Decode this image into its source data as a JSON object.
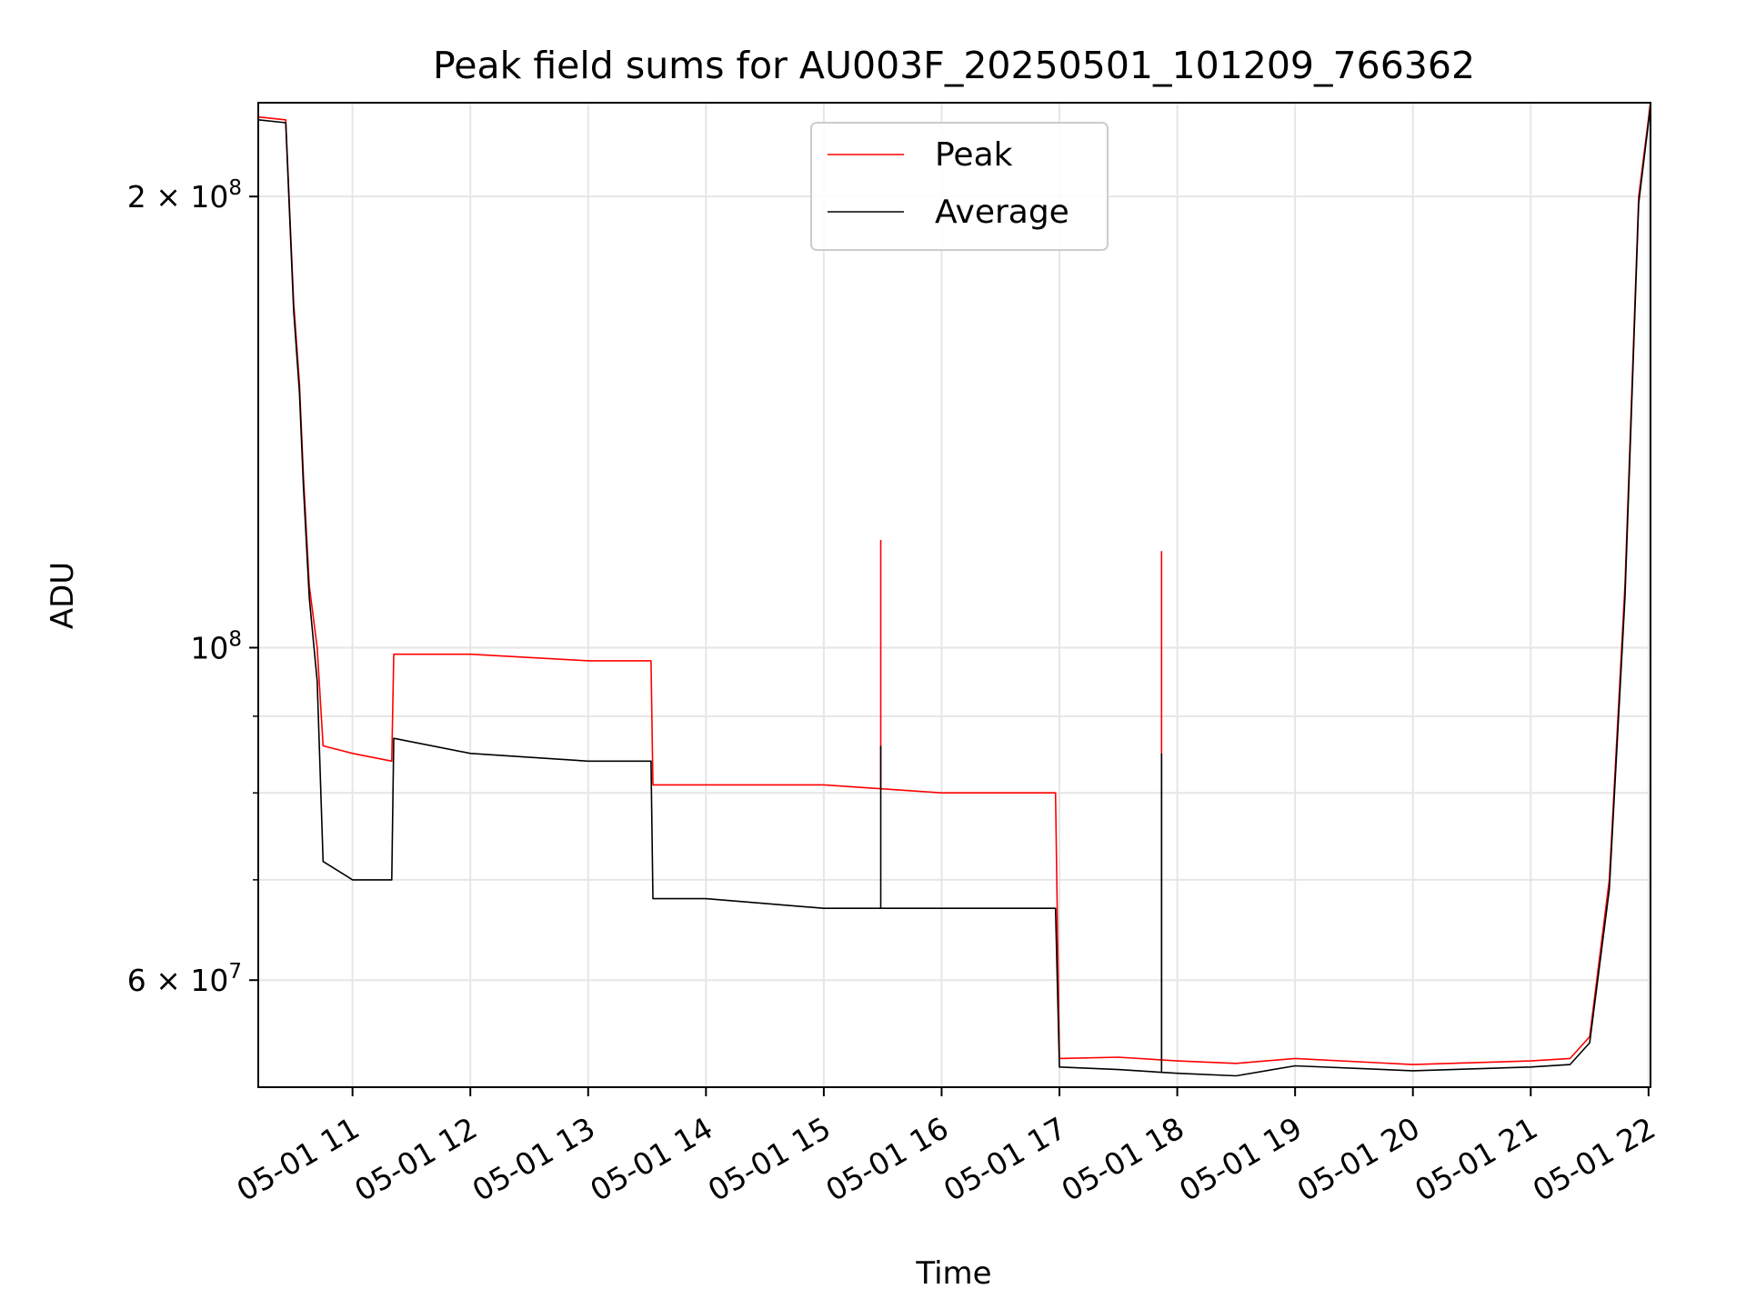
{
  "chart_data": {
    "type": "line",
    "title": "Peak field sums for AU003F_20250501_101209_766362",
    "xlabel": "Time",
    "ylabel": "ADU",
    "y_scale": "log",
    "grid": true,
    "legend_position": "top-center",
    "xlim": [
      "2025-05-01 10:12",
      "2025-05-01 22:01"
    ],
    "ylim": [
      50900000,
      231000000
    ],
    "x_ticks": [
      {
        "value": "2025-05-01 11:00",
        "label": "05-01 11"
      },
      {
        "value": "2025-05-01 12:00",
        "label": "05-01 12"
      },
      {
        "value": "2025-05-01 13:00",
        "label": "05-01 13"
      },
      {
        "value": "2025-05-01 14:00",
        "label": "05-01 14"
      },
      {
        "value": "2025-05-01 15:00",
        "label": "05-01 15"
      },
      {
        "value": "2025-05-01 16:00",
        "label": "05-01 16"
      },
      {
        "value": "2025-05-01 17:00",
        "label": "05-01 17"
      },
      {
        "value": "2025-05-01 18:00",
        "label": "05-01 18"
      },
      {
        "value": "2025-05-01 19:00",
        "label": "05-01 19"
      },
      {
        "value": "2025-05-01 20:00",
        "label": "05-01 20"
      },
      {
        "value": "2025-05-01 21:00",
        "label": "05-01 21"
      },
      {
        "value": "2025-05-01 22:00",
        "label": "05-01 22"
      }
    ],
    "y_ticks": [
      {
        "value": 200000000,
        "mantissa": "2",
        "times": "×",
        "base": "10",
        "exponent": "8"
      },
      {
        "value": 100000000,
        "mantissa": "",
        "times": "",
        "base": "10",
        "exponent": "8"
      },
      {
        "value": 60000000,
        "mantissa": "6",
        "times": "×",
        "base": "10",
        "exponent": "7"
      }
    ],
    "y_minor_ticks": [
      70000000,
      80000000,
      90000000
    ],
    "series": [
      {
        "name": "Peak",
        "color": "#ff0000",
        "x": [
          "2025-05-01 10:12",
          "2025-05-01 10:26",
          "2025-05-01 10:30",
          "2025-05-01 10:33",
          "2025-05-01 10:35",
          "2025-05-01 10:38",
          "2025-05-01 10:42",
          "2025-05-01 10:45",
          "2025-05-01 11:00",
          "2025-05-01 11:20",
          "2025-05-01 11:21",
          "2025-05-01 12:00",
          "2025-05-01 13:00",
          "2025-05-01 13:32",
          "2025-05-01 13:33",
          "2025-05-01 14:00",
          "2025-05-01 15:00",
          "2025-05-01 16:00",
          "2025-05-01 16:58",
          "2025-05-01 17:00",
          "2025-05-01 17:30",
          "2025-05-01 18:00",
          "2025-05-01 18:30",
          "2025-05-01 19:00",
          "2025-05-01 20:00",
          "2025-05-01 21:00",
          "2025-05-01 21:20",
          "2025-05-01 21:30",
          "2025-05-01 21:40",
          "2025-05-01 21:48",
          "2025-05-01 21:55",
          "2025-05-01 22:01"
        ],
        "y": [
          226000000,
          225000000,
          170000000,
          150000000,
          130000000,
          110000000,
          100000000,
          86000000,
          85000000,
          84000000,
          99000000,
          99000000,
          98000000,
          98000000,
          81000000,
          81000000,
          81000000,
          80000000,
          80000000,
          53200000,
          53300000,
          53000000,
          52800000,
          53200000,
          52700000,
          53000000,
          53200000,
          55000000,
          70000000,
          110000000,
          200000000,
          231000000
        ],
        "spikes": [
          {
            "x": "2025-05-01 15:29",
            "y": 118000000
          },
          {
            "x": "2025-05-01 17:52",
            "y": 116000000
          }
        ]
      },
      {
        "name": "Average",
        "color": "#000000",
        "x": [
          "2025-05-01 10:12",
          "2025-05-01 10:26",
          "2025-05-01 10:30",
          "2025-05-01 10:33",
          "2025-05-01 10:35",
          "2025-05-01 10:38",
          "2025-05-01 10:42",
          "2025-05-01 10:45",
          "2025-05-01 11:00",
          "2025-05-01 11:20",
          "2025-05-01 11:21",
          "2025-05-01 12:00",
          "2025-05-01 13:00",
          "2025-05-01 13:32",
          "2025-05-01 13:33",
          "2025-05-01 14:00",
          "2025-05-01 15:00",
          "2025-05-01 16:00",
          "2025-05-01 16:58",
          "2025-05-01 17:00",
          "2025-05-01 17:30",
          "2025-05-01 18:00",
          "2025-05-01 18:30",
          "2025-05-01 19:00",
          "2025-05-01 20:00",
          "2025-05-01 21:00",
          "2025-05-01 21:20",
          "2025-05-01 21:30",
          "2025-05-01 21:40",
          "2025-05-01 21:48",
          "2025-05-01 21:55",
          "2025-05-01 22:01"
        ],
        "y": [
          225000000,
          224000000,
          168000000,
          148000000,
          128000000,
          108000000,
          95000000,
          72000000,
          70000000,
          70000000,
          87000000,
          85000000,
          84000000,
          84000000,
          68000000,
          68000000,
          67000000,
          67000000,
          67000000,
          52500000,
          52300000,
          52000000,
          51800000,
          52600000,
          52200000,
          52500000,
          52700000,
          54500000,
          69000000,
          108000000,
          198000000,
          230000000
        ],
        "spikes": [
          {
            "x": "2025-05-01 15:29",
            "y": 86000000
          },
          {
            "x": "2025-05-01 17:52",
            "y": 85000000
          }
        ]
      }
    ]
  }
}
